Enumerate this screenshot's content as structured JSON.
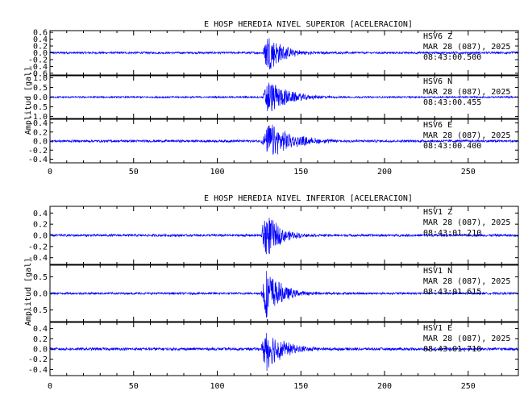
{
  "colors": {
    "trace": "#0000ff",
    "axes": "#000000",
    "background": "#ffffff"
  },
  "chart_data": [
    {
      "type": "line",
      "title": "E HOSP HEREDIA NIVEL SUPERIOR [ACELERACION]",
      "ylabel": "Amplitud [gal]",
      "xlim": [
        0,
        280
      ],
      "xticks": [
        "0",
        "50",
        "100",
        "150",
        "200",
        "250"
      ],
      "x_tick_values": [
        0,
        50,
        100,
        150,
        200,
        250
      ],
      "grid": false,
      "panels": [
        {
          "component": "Z",
          "station": "HSV6",
          "station_label": "HSV6    Z",
          "date": "MAR 28 (087), 2025",
          "time": "08:43:00.500",
          "ylim": [
            -0.65,
            0.65
          ],
          "yticks": [
            "0.6",
            "0.4",
            "0.2",
            "0.0",
            "-0.2",
            "-0.4",
            "-0.6"
          ],
          "y_tick_values": [
            0.6,
            0.4,
            0.2,
            0.0,
            -0.2,
            -0.4,
            -0.6
          ],
          "signal": {
            "onset": 127,
            "peak_time": 130,
            "peak_amplitude": 0.6,
            "decay": 9,
            "noise": 0.03,
            "max_abs": 0.6
          }
        },
        {
          "component": "N",
          "station": "HSV6",
          "station_label": "HSV6    N",
          "date": "MAR 28 (087), 2025",
          "time": "08:43:00.455",
          "ylim": [
            -1.1,
            1.1
          ],
          "yticks": [
            "1.0",
            "0.5",
            "0.0",
            "-0.5",
            "-1.0"
          ],
          "y_tick_values": [
            1.0,
            0.5,
            0.0,
            -0.5,
            -1.0
          ],
          "signal": {
            "onset": 127,
            "peak_time": 130,
            "peak_amplitude": 0.95,
            "decay": 12,
            "noise": 0.04,
            "max_abs": 1.05
          }
        },
        {
          "component": "E",
          "station": "HSV6",
          "station_label": "HSV6    E",
          "date": "MAR 28 (087), 2025",
          "time": "08:43:00.400",
          "ylim": [
            -0.48,
            0.48
          ],
          "yticks": [
            "0.4",
            "0.2",
            "0.0",
            "-0.2",
            "-0.4"
          ],
          "y_tick_values": [
            0.4,
            0.2,
            0.0,
            -0.2,
            -0.4
          ],
          "signal": {
            "onset": 126,
            "peak_time": 131,
            "peak_amplitude": 0.4,
            "decay": 14,
            "noise": 0.025,
            "max_abs": 0.44
          }
        }
      ]
    },
    {
      "type": "line",
      "title": "E HOSP HEREDIA NIVEL INFERIOR [ACELERACION]",
      "ylabel": "Amplitud [gal]",
      "xlim": [
        0,
        280
      ],
      "xticks": [
        "0",
        "50",
        "100",
        "150",
        "200",
        "250"
      ],
      "x_tick_values": [
        0,
        50,
        100,
        150,
        200,
        250
      ],
      "grid": false,
      "panels": [
        {
          "component": "Z",
          "station": "HSV1",
          "station_label": "HSV1    Z",
          "date": "MAR 28 (087), 2025",
          "time": "08:43:01.210",
          "ylim": [
            -0.52,
            0.52
          ],
          "yticks": [
            "0.4",
            "0.2",
            "0.0",
            "-0.2",
            "-0.4"
          ],
          "y_tick_values": [
            0.4,
            0.2,
            0.0,
            -0.2,
            -0.4
          ],
          "signal": {
            "onset": 126,
            "peak_time": 129,
            "peak_amplitude": 0.45,
            "decay": 8,
            "noise": 0.02,
            "max_abs": 0.5
          }
        },
        {
          "component": "N",
          "station": "HSV1",
          "station_label": "HSV1    N",
          "date": "MAR 28 (087), 2025",
          "time": "08:43:01.615",
          "ylim": [
            -0.85,
            0.85
          ],
          "yticks": [
            "0.5",
            "0.0",
            "-0.5"
          ],
          "y_tick_values": [
            0.5,
            0.0,
            -0.5
          ],
          "signal": {
            "onset": 126,
            "peak_time": 129,
            "peak_amplitude": 0.8,
            "decay": 9,
            "noise": 0.03,
            "max_abs": 0.82
          }
        },
        {
          "component": "E",
          "station": "HSV1",
          "station_label": "HSV1    E",
          "date": "MAR 28 (087), 2025",
          "time": "08:43:01.710",
          "ylim": [
            -0.52,
            0.52
          ],
          "yticks": [
            "0.4",
            "0.2",
            "0.0",
            "-0.2",
            "-0.4"
          ],
          "y_tick_values": [
            0.4,
            0.2,
            0.0,
            -0.2,
            -0.4
          ],
          "signal": {
            "onset": 126,
            "peak_time": 129,
            "peak_amplitude": 0.45,
            "decay": 10,
            "noise": 0.025,
            "max_abs": 0.5
          }
        }
      ]
    }
  ]
}
